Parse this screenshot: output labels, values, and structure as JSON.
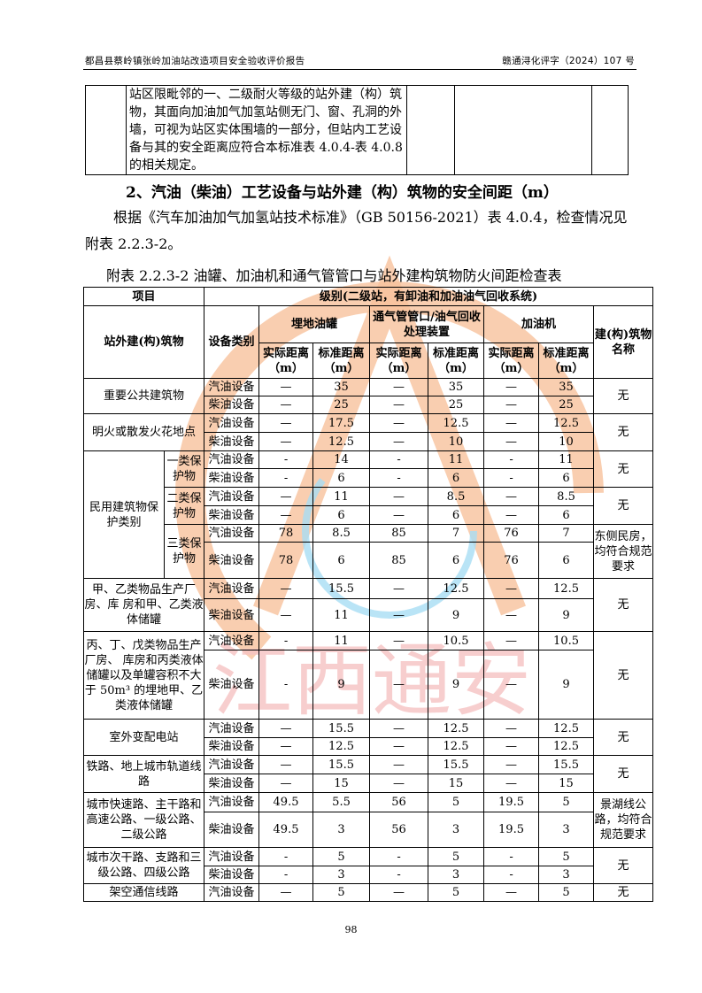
{
  "header": {
    "left": "都昌县蔡岭镇张岭加油站改造项目安全验收评价报告",
    "right": "赣通浔化评字（2024）107 号"
  },
  "top_table": {
    "text": "站区限毗邻的一、二级耐火等级的站外建（构）筑物，其面向加油加气加氢站侧无门、窗、孔洞的外墙，可视为站区实体围墙的一部分，但站内工艺设备与其的安全距离应符合本标准表 4.0.4-表 4.0.8 的相关规定。"
  },
  "section_title": "2、汽油（柴油）工艺设备与站外建（构）筑物的安全间距（m）",
  "paragraph": "根据《汽车加油加气加氢站技术标准》（GB 50156-2021）表 4.0.4，检查情况见附表 2.2.3-2。",
  "caption": "附表 2.2.3-2  油罐、加油机和通气管管口与站外建构筑物防火间距检查表",
  "table": {
    "h_item": "项目",
    "h_grade": "级别(二级站，有卸油和加油油气回收系统)",
    "h_building": "站外建(构)筑物",
    "h_equip": "设备类别",
    "h_tank": "埋地油罐",
    "h_vent": "通气管管口/油气回收处理装置",
    "h_disp": "加油机",
    "h_name": "建(构)筑物名称",
    "h_actual": "实际距离（m）",
    "h_std": "标准距离（m）",
    "categories": [
      {
        "name": "重要公共建筑物",
        "note": "无",
        "rows": [
          {
            "equip": "汽油设备",
            "v": [
              "—",
              "35",
              "—",
              "35",
              "—",
              "35"
            ]
          },
          {
            "equip": "柴油设备",
            "v": [
              "—",
              "25",
              "—",
              "25",
              "—",
              "25"
            ]
          }
        ]
      },
      {
        "name": "明火或散发火花地点",
        "note": "无",
        "rows": [
          {
            "equip": "汽油设备",
            "v": [
              "—",
              "17.5",
              "—",
              "12.5",
              "—",
              "12.5"
            ]
          },
          {
            "equip": "柴油设备",
            "v": [
              "—",
              "12.5",
              "—",
              "10",
              "—",
              "10"
            ]
          }
        ]
      },
      {
        "name": "民用建筑物保护类别",
        "subs": [
          {
            "name": "一类保护物",
            "note": "无",
            "rows": [
              {
                "equip": "汽油设备",
                "v": [
                  "-",
                  "14",
                  "-",
                  "11",
                  "-",
                  "11"
                ]
              },
              {
                "equip": "柴油设备",
                "v": [
                  "-",
                  "6",
                  "-",
                  "6",
                  "-",
                  "6"
                ]
              }
            ]
          },
          {
            "name": "二类保护物",
            "note": "无",
            "rows": [
              {
                "equip": "汽油设备",
                "v": [
                  "—",
                  "11",
                  "—",
                  "8.5",
                  "—",
                  "8.5"
                ]
              },
              {
                "equip": "柴油设备",
                "v": [
                  "—",
                  "6",
                  "—",
                  "6",
                  "—",
                  "6"
                ]
              }
            ]
          },
          {
            "name": "三类保护物",
            "note": "东侧民房，均符合规范要求",
            "rows": [
              {
                "equip": "汽油设备",
                "v": [
                  "78",
                  "8.5",
                  "85",
                  "7",
                  "76",
                  "7"
                ]
              },
              {
                "equip": "柴油设备",
                "v": [
                  "78",
                  "6",
                  "85",
                  "6",
                  "76",
                  "6"
                ]
              }
            ]
          }
        ]
      },
      {
        "name": "甲、乙类物品生产厂房、库 房和甲、乙类液体储罐",
        "note": "无",
        "rows": [
          {
            "equip": "汽油设备",
            "v": [
              "—",
              "15.5",
              "—",
              "12.5",
              "—",
              "12.5"
            ]
          },
          {
            "equip": "柴油设备",
            "v": [
              "—",
              "11",
              "—",
              "9",
              "—",
              "9"
            ]
          }
        ]
      },
      {
        "name": "丙、丁、戊类物品生产厂房、 库房和丙类液体储罐以及单罐容积不大于 50m³ 的埋地甲、乙类液体储罐",
        "note": "无",
        "rows": [
          {
            "equip": "汽油设备",
            "v": [
              "-",
              "11",
              "—",
              "10.5",
              "—",
              "10.5"
            ]
          },
          {
            "equip": "柴油设备",
            "v": [
              "-",
              "9",
              "—",
              "9",
              "—",
              "9"
            ]
          }
        ]
      },
      {
        "name": "室外变配电站",
        "note": "无",
        "rows": [
          {
            "equip": "汽油设备",
            "v": [
              "—",
              "15.5",
              "—",
              "12.5",
              "—",
              "12.5"
            ]
          },
          {
            "equip": "柴油设备",
            "v": [
              "—",
              "12.5",
              "—",
              "12.5",
              "—",
              "12.5"
            ]
          }
        ]
      },
      {
        "name": "铁路、地上城市轨道线路",
        "note": "无",
        "rows": [
          {
            "equip": "汽油设备",
            "v": [
              "—",
              "15.5",
              "—",
              "15.5",
              "—",
              "15.5"
            ]
          },
          {
            "equip": "柴油设备",
            "v": [
              "—",
              "15",
              "—",
              "15",
              "—",
              "15"
            ]
          }
        ]
      },
      {
        "name": "城市快速路、主干路和高速公路、一级公路、二级公路",
        "note": "景湖线公路，均符合规范要求",
        "rows": [
          {
            "equip": "汽油设备",
            "v": [
              "49.5",
              "5.5",
              "56",
              "5",
              "19.5",
              "5"
            ]
          },
          {
            "equip": "柴油设备",
            "v": [
              "49.5",
              "3",
              "56",
              "3",
              "19.5",
              "3"
            ]
          }
        ]
      },
      {
        "name": "城市次干路、支路和三级公路、四级公路",
        "note": "无",
        "rows": [
          {
            "equip": "汽油设备",
            "v": [
              "-",
              "5",
              "-",
              "5",
              "-",
              "5"
            ]
          },
          {
            "equip": "柴油设备",
            "v": [
              "-",
              "3",
              "-",
              "3",
              "-",
              "3"
            ]
          }
        ]
      },
      {
        "name": "架空通信线路",
        "note": "无",
        "rows": [
          {
            "equip": "汽油设备",
            "v": [
              "—",
              "5",
              "—",
              "5",
              "—",
              "5"
            ]
          }
        ]
      }
    ]
  },
  "watermark": {
    "text": "江西通安",
    "colors": {
      "orange": "#f5a06a",
      "red": "#f4b4b4",
      "blue": "#8fd3f0"
    }
  },
  "page_number": "98"
}
